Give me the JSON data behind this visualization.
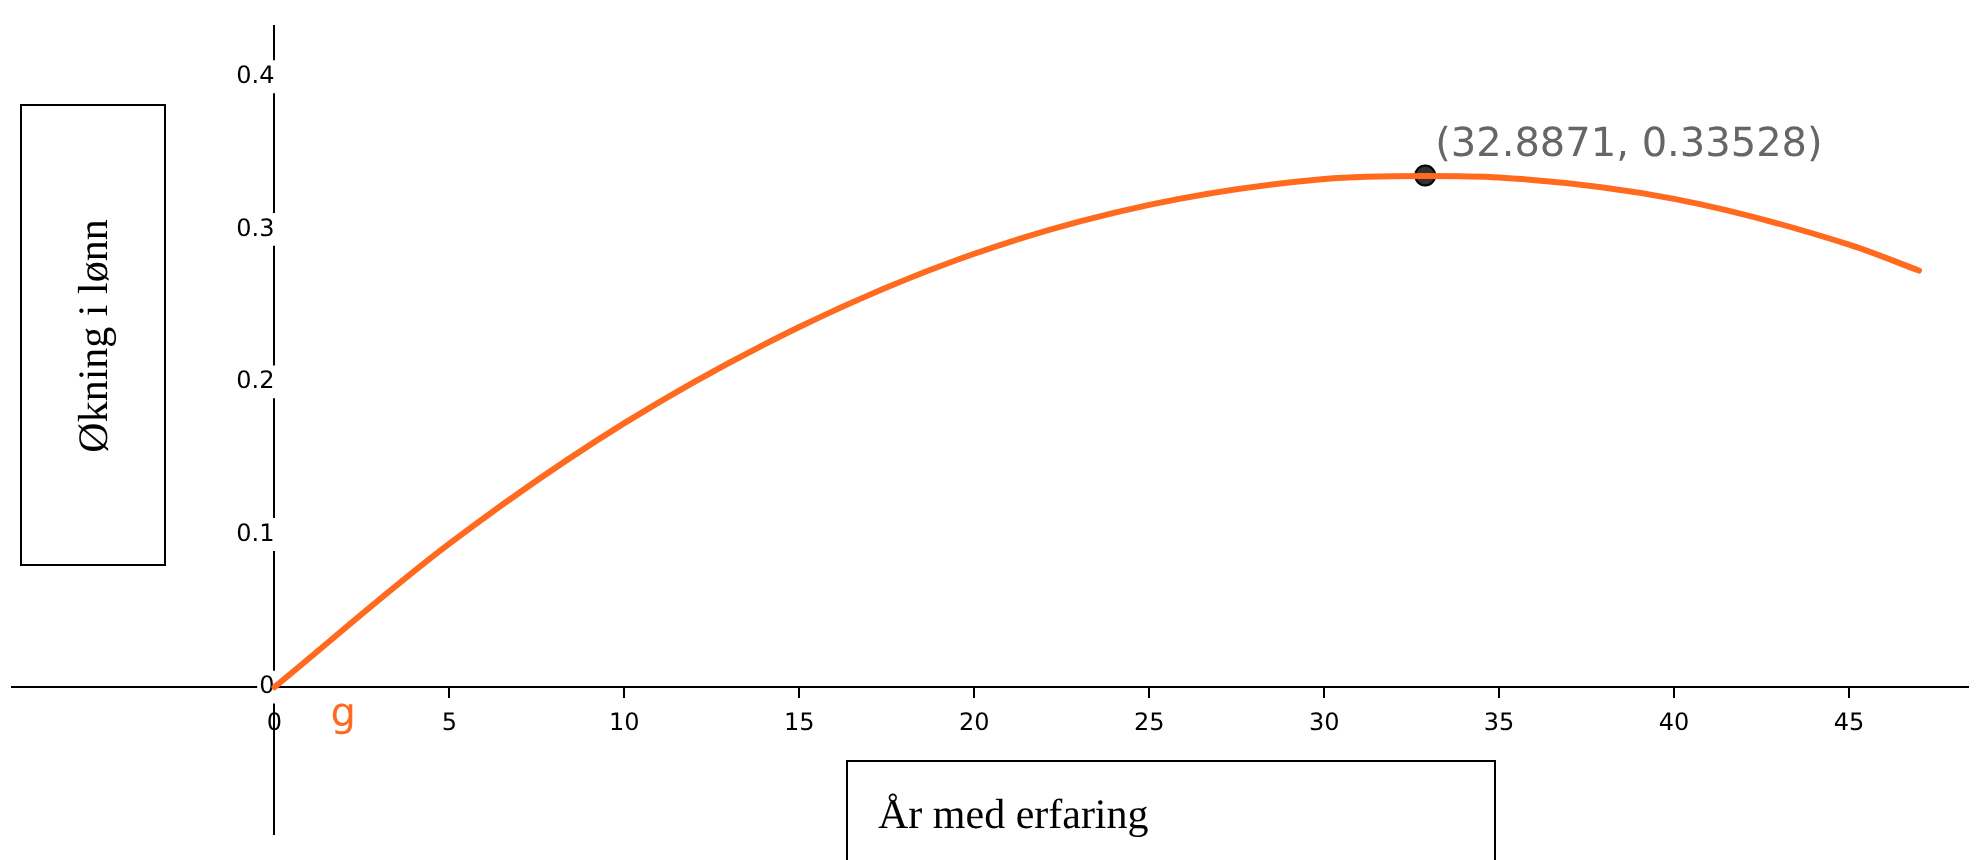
{
  "chart_data": {
    "type": "line",
    "xlabel": "År med erfaring",
    "ylabel": "Økning i lønn",
    "xlim": [
      -7.5,
      48.4
    ],
    "ylim": [
      -0.096,
      0.433
    ],
    "xticks": [
      0,
      5,
      10,
      15,
      20,
      25,
      30,
      35,
      40,
      45
    ],
    "yticks": [
      0,
      0.1,
      0.2,
      0.3,
      0.4
    ],
    "grid": false,
    "marker": "none",
    "series": [
      {
        "name": "g",
        "color": "#ff6a1f",
        "x": [
          0,
          5,
          10,
          15,
          20,
          25,
          30,
          32.8871,
          35,
          40,
          45,
          47
        ],
        "values": [
          0,
          0.094,
          0.173,
          0.236,
          0.284,
          0.316,
          0.333,
          0.335,
          0.334,
          0.32,
          0.29,
          0.273
        ]
      },
      {
        "type": "scatter",
        "marker": "circle",
        "color": "#333333",
        "x": [
          32.8871
        ],
        "values": [
          0.33528
        ]
      }
    ],
    "annotations": [
      {
        "text": "(32.8871, 0.33528)",
        "x": 32.8871,
        "y": 0.33528
      }
    ]
  }
}
